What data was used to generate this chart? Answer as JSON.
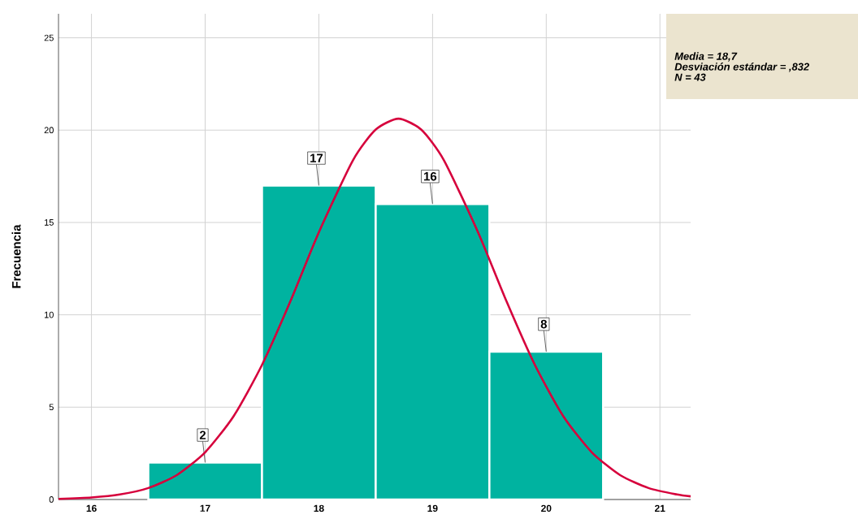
{
  "chart_data": {
    "type": "histogram",
    "ylabel": "Frecuencia",
    "bins": [
      16.5,
      17.5,
      18.5,
      19.5,
      20.5
    ],
    "values": [
      2,
      17,
      16,
      8
    ],
    "color": "#00b3a0",
    "value_labels": [
      "2",
      "17",
      "16",
      "8"
    ],
    "series": [
      {
        "type": "line",
        "color": "#d6003c",
        "x": [
          15.71,
          16.0,
          16.25,
          16.5,
          16.75,
          17.0,
          17.25,
          17.5,
          17.75,
          18.0,
          18.3,
          18.5,
          18.7,
          18.9,
          19.1,
          19.4,
          19.65,
          19.9,
          20.15,
          20.4,
          20.65,
          20.9,
          21.15,
          21.27
        ],
        "values": [
          0.03,
          0.11,
          0.27,
          0.62,
          1.32,
          2.56,
          4.51,
          7.29,
          10.74,
          14.47,
          18.37,
          20.03,
          20.62,
          20.03,
          18.37,
          14.47,
          10.74,
          7.29,
          4.51,
          2.56,
          1.32,
          0.62,
          0.27,
          0.17
        ]
      }
    ],
    "xlim": [
      15.71,
      21.27
    ],
    "ylim": [
      0,
      26.3
    ],
    "xticks": [
      16,
      17,
      18,
      19,
      20,
      21
    ],
    "yticks": [
      0,
      5,
      10,
      15,
      20,
      25
    ],
    "grid": true,
    "annotations": [
      "Media = 18,7",
      "Desviación estándar = ,832",
      "N = 43"
    ]
  }
}
